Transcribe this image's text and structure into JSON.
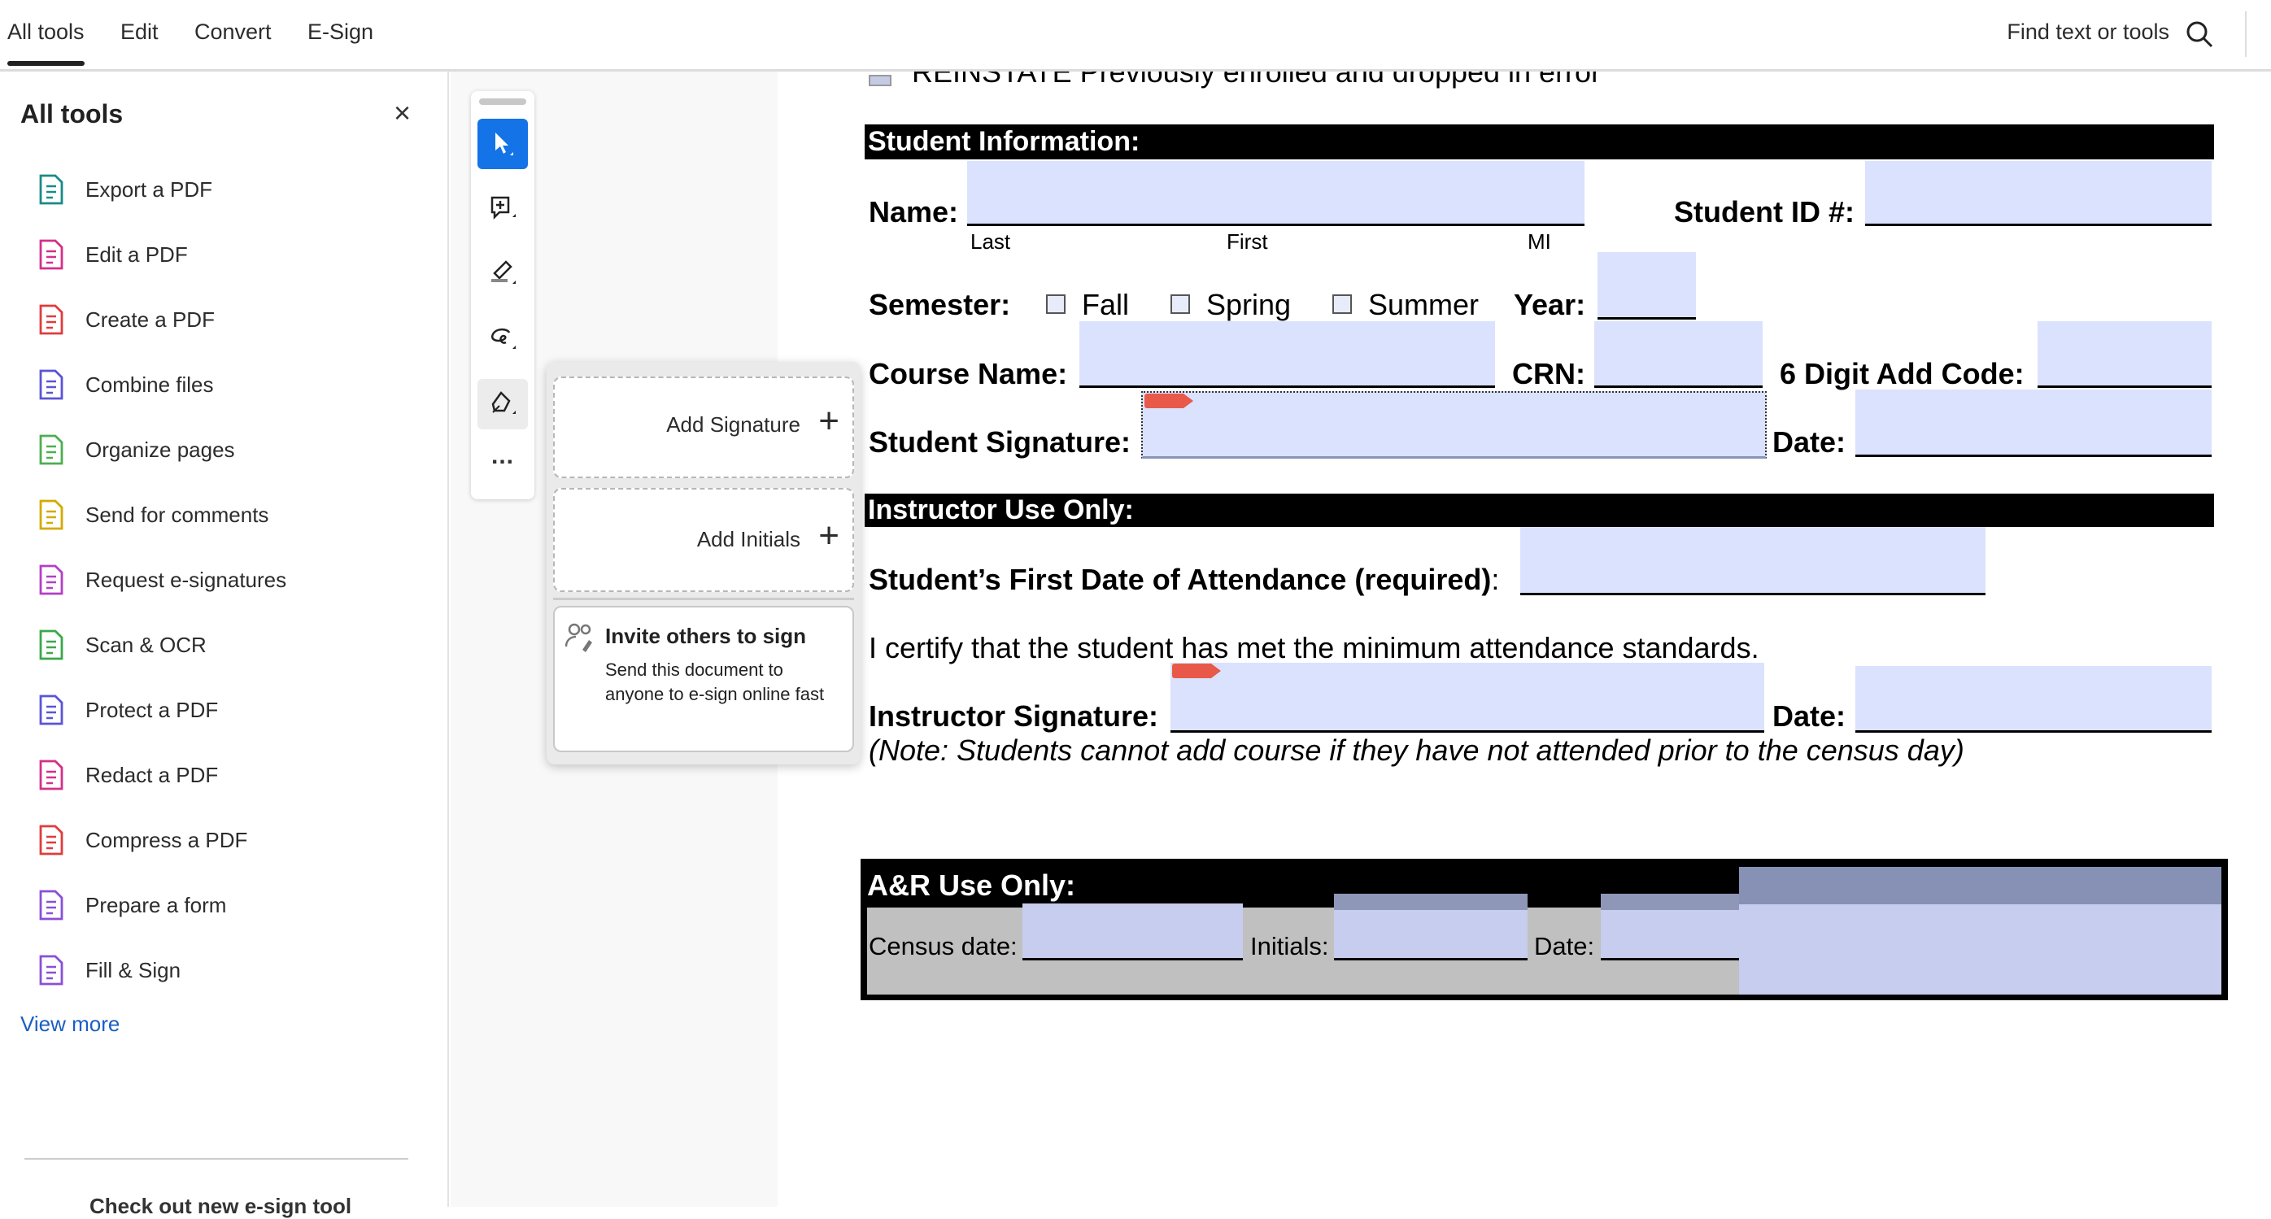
{
  "topbar": {
    "tabs": [
      {
        "label": "All tools",
        "active": true
      },
      {
        "label": "Edit"
      },
      {
        "label": "Convert"
      },
      {
        "label": "E-Sign"
      }
    ],
    "search_label": "Find text or tools"
  },
  "left_panel": {
    "title": "All tools",
    "close": "×",
    "items": [
      {
        "label": "Export a PDF",
        "icon": "export-pdf-icon",
        "color": "#1a8a8a"
      },
      {
        "label": "Edit a PDF",
        "icon": "edit-pdf-icon",
        "color": "#d3308a"
      },
      {
        "label": "Create a PDF",
        "icon": "create-pdf-icon",
        "color": "#e03c3c"
      },
      {
        "label": "Combine files",
        "icon": "combine-files-icon",
        "color": "#5a54d6"
      },
      {
        "label": "Organize pages",
        "icon": "organize-pages-icon",
        "color": "#4caf50"
      },
      {
        "label": "Send for comments",
        "icon": "send-comments-icon",
        "color": "#d4a900"
      },
      {
        "label": "Request e-signatures",
        "icon": "request-esign-icon",
        "color": "#b43ec8"
      },
      {
        "label": "Scan & OCR",
        "icon": "scan-ocr-icon",
        "color": "#3aa84a"
      },
      {
        "label": "Protect a PDF",
        "icon": "protect-pdf-icon",
        "color": "#5a54d6"
      },
      {
        "label": "Redact a PDF",
        "icon": "redact-pdf-icon",
        "color": "#d3308a"
      },
      {
        "label": "Compress a PDF",
        "icon": "compress-pdf-icon",
        "color": "#e03c3c"
      },
      {
        "label": "Prepare a form",
        "icon": "prepare-form-icon",
        "color": "#8a4fd6"
      },
      {
        "label": "Fill & Sign",
        "icon": "fill-sign-icon",
        "color": "#8a4fd6"
      }
    ],
    "view_more": "View more",
    "footer": "Check out new e-sign tool"
  },
  "toolbar": {
    "accent": "#1473e6",
    "tools": [
      "select",
      "add-comment",
      "highlight",
      "draw",
      "sign",
      "more"
    ],
    "more_label": "..."
  },
  "sign_popup": {
    "add_signature": "Add Signature",
    "add_initials": "Add Initials",
    "plus": "+",
    "invite_title": "Invite others to sign",
    "invite_desc": "Send this document to anyone to e-sign online fast"
  },
  "document": {
    "reinstate": "REINSTATE Previously enrolled and dropped in error",
    "student_info": "Student Information:",
    "name": "Name:",
    "last": "Last",
    "first": "First",
    "mi": "MI",
    "student_id": "Student ID #:",
    "semester": "Semester:",
    "fall": "Fall",
    "spring": "Spring",
    "summer": "Summer",
    "year": "Year:",
    "course_name": "Course Name:",
    "crn": "CRN:",
    "add_code": "6 Digit Add Code:",
    "student_signature": "Student Signature:",
    "date": "Date:",
    "instructor_only": "Instructor Use Only:",
    "first_date": "Student’s First Date of Attendance (required)",
    "colon": ":",
    "certify": "I certify that the student has met the minimum attendance standards.",
    "instructor_signature": "Instructor Signature:",
    "note": "(Note: Students cannot add course if they have not attended prior to the census day)",
    "ar_only": "A&R Use Only:",
    "census": "Census date:",
    "initials": "Initials:",
    "ar_date": "Date:",
    "field_color": "#dae2fd"
  }
}
